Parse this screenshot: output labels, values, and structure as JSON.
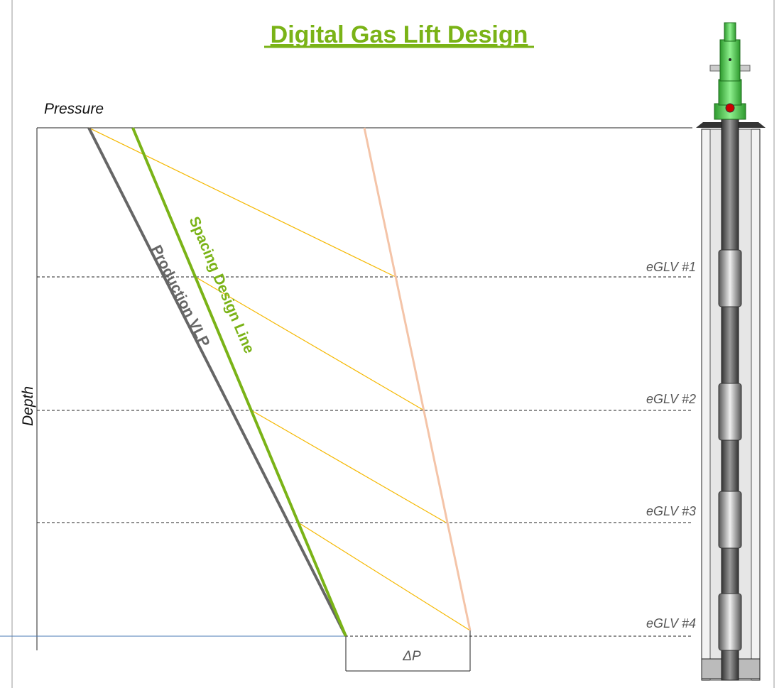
{
  "title": "Digital Gas Lift Design",
  "x_axis_label": "Pressure",
  "y_axis_label": "Depth",
  "lines": {
    "production": "Production VLP",
    "spacing": "Spacing Design Line"
  },
  "valves": [
    "eGLV #1",
    "eGLV #2",
    "eGLV #3",
    "eGLV #4"
  ],
  "delta_label": "ΔP"
}
